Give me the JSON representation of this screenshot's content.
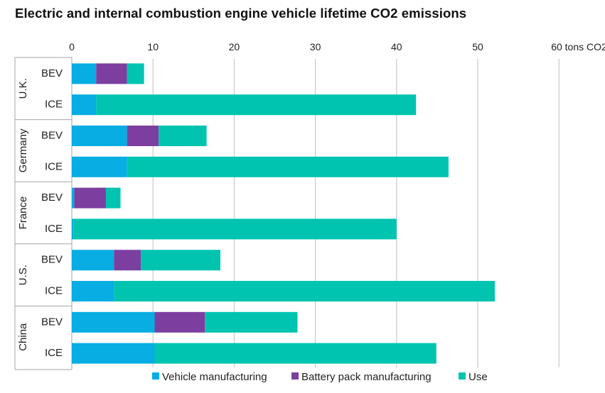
{
  "title": "Electric and internal combustion engine vehicle lifetime CO2 emissions",
  "colors": {
    "vehicle": "#07ade3",
    "battery": "#7c3fa0",
    "use": "#00c4b0",
    "grid": "#bfbfbf",
    "frame": "#a6a6a6"
  },
  "chart_data": {
    "type": "bar",
    "orientation": "horizontal",
    "stacked": true,
    "xlim": [
      0,
      60
    ],
    "x_ticks": [
      0,
      10,
      20,
      30,
      40,
      50,
      60
    ],
    "x_tick_labels": [
      "0",
      "10",
      "20",
      "30",
      "40",
      "50",
      "60 tons CO2"
    ],
    "grid": true,
    "legend_position": "bottom",
    "groups": [
      {
        "name": "U.K.",
        "bars": [
          {
            "label": "BEV",
            "values": [
              3.0,
              3.8,
              2.1
            ]
          },
          {
            "label": "ICE",
            "values": [
              3.0,
              0,
              39.4
            ]
          }
        ]
      },
      {
        "name": "Germany",
        "bars": [
          {
            "label": "BEV",
            "values": [
              6.8,
              3.9,
              5.9
            ]
          },
          {
            "label": "ICE",
            "values": [
              6.8,
              0,
              39.6
            ]
          }
        ]
      },
      {
        "name": "France",
        "bars": [
          {
            "label": "BEV",
            "values": [
              0.3,
              3.9,
              1.8
            ]
          },
          {
            "label": "ICE",
            "values": [
              0.2,
              0,
              39.8
            ]
          }
        ]
      },
      {
        "name": "U.S.",
        "bars": [
          {
            "label": "BEV",
            "values": [
              5.2,
              3.3,
              9.8
            ]
          },
          {
            "label": "ICE",
            "values": [
              5.2,
              0,
              46.9
            ]
          }
        ]
      },
      {
        "name": "China",
        "bars": [
          {
            "label": "BEV",
            "values": [
              10.2,
              6.2,
              11.4
            ]
          },
          {
            "label": "ICE",
            "values": [
              10.2,
              0,
              34.7
            ]
          }
        ]
      }
    ],
    "series": [
      {
        "name": "Vehicle manufacturing",
        "color": "#07ade3"
      },
      {
        "name": "Battery pack manufacturing",
        "color": "#7c3fa0"
      },
      {
        "name": "Use",
        "color": "#00c4b0"
      }
    ]
  }
}
